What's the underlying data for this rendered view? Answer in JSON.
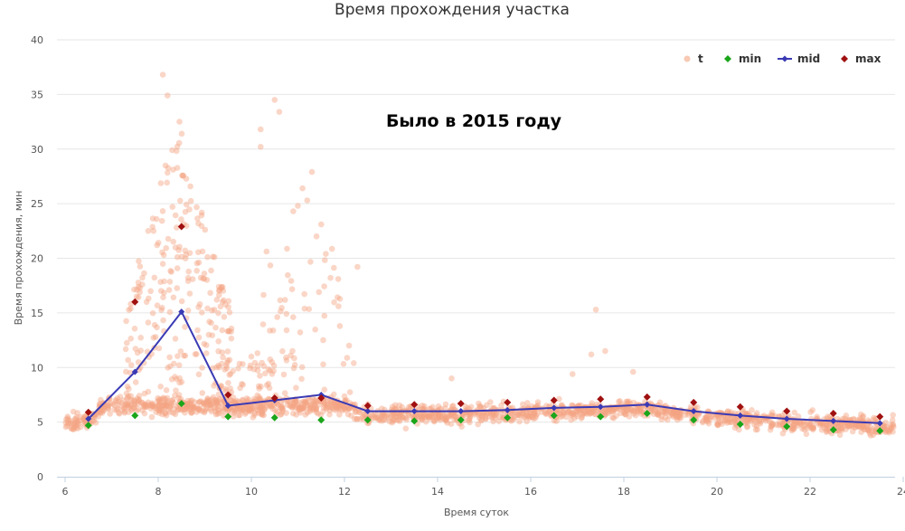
{
  "chart_data": {
    "type": "scatter",
    "title": "Время прохождения участка",
    "annotation": "Было в 2015 году",
    "xlabel": "Время суток",
    "ylabel": "Время прохождения, мин",
    "xlim": [
      6,
      24
    ],
    "ylim": [
      0,
      40
    ],
    "xticks": [
      "6",
      "8",
      "10",
      "12",
      "14",
      "16",
      "18",
      "20",
      "22",
      "24"
    ],
    "yticks": [
      "0",
      "5",
      "10",
      "15",
      "20",
      "25",
      "30",
      "35",
      "40"
    ],
    "grid": true,
    "legend_position": "top-right",
    "colors": {
      "t": "#f4a582",
      "min": "#1aa51a",
      "mid": "#3a3ab5",
      "max": "#a01010"
    },
    "x": [
      6.5,
      7.5,
      8.5,
      9.5,
      10.5,
      11.5,
      12.5,
      13.5,
      14.5,
      15.5,
      16.5,
      17.5,
      18.5,
      19.5,
      20.5,
      21.5,
      22.5,
      23.5
    ],
    "series": [
      {
        "name": "t",
        "type": "scatter",
        "note": "dense cloud of individual measurements"
      },
      {
        "name": "min",
        "type": "marker",
        "values": [
          4.7,
          5.6,
          6.7,
          5.5,
          5.4,
          5.2,
          5.2,
          5.1,
          5.2,
          5.4,
          5.6,
          5.5,
          5.8,
          5.2,
          4.8,
          4.6,
          4.3,
          4.2
        ]
      },
      {
        "name": "mid",
        "type": "line",
        "values": [
          5.3,
          9.6,
          15.1,
          6.5,
          7.0,
          7.5,
          6.0,
          6.0,
          6.0,
          6.1,
          6.3,
          6.4,
          6.6,
          6.0,
          5.6,
          5.3,
          5.1,
          4.9
        ]
      },
      {
        "name": "max",
        "type": "marker",
        "values": [
          5.9,
          16.0,
          22.9,
          7.5,
          7.2,
          7.2,
          6.5,
          6.6,
          6.7,
          6.8,
          7.0,
          7.1,
          7.3,
          6.8,
          6.4,
          6.0,
          5.8,
          5.5
        ]
      }
    ]
  }
}
